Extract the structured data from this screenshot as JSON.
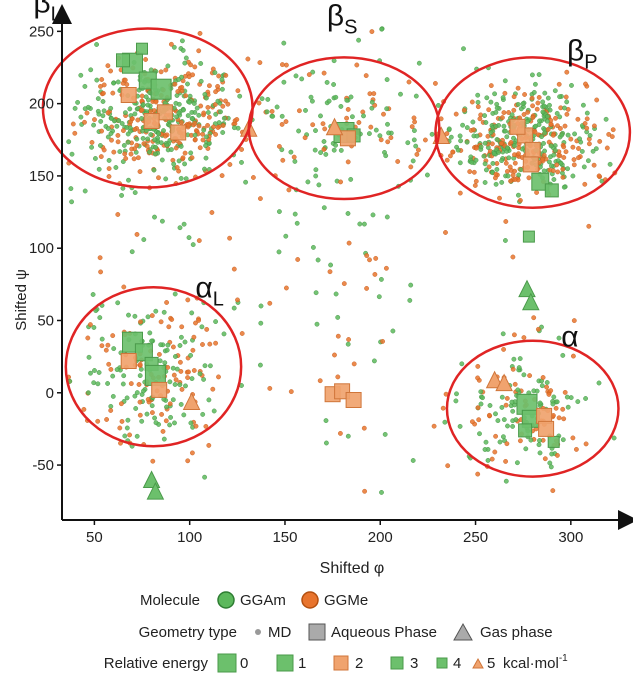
{
  "chart_data": {
    "type": "scatter",
    "xlabel": "Shifted φ",
    "ylabel": "Shifted ψ",
    "xlim": [
      33,
      330
    ],
    "ylim": [
      -88,
      262
    ],
    "xticks": [
      50,
      100,
      150,
      200,
      250,
      300
    ],
    "yticks": [
      -50,
      0,
      50,
      100,
      150,
      200,
      250
    ],
    "regions": [
      {
        "label": "β",
        "sub": "L",
        "cx": 78,
        "cy": 197,
        "rx": 55,
        "ry": 55
      },
      {
        "label": "β",
        "sub": "S",
        "cx": 181,
        "cy": 183,
        "rx": 50,
        "ry": 49
      },
      {
        "label": "β",
        "sub": "P",
        "cx": 280,
        "cy": 180,
        "rx": 51,
        "ry": 52
      },
      {
        "label": "α",
        "sub": "L",
        "cx": 81,
        "cy": 18,
        "rx": 46,
        "ry": 55
      },
      {
        "label": "α",
        "sub": "",
        "cx": 280,
        "cy": -11,
        "rx": 45,
        "ry": 47
      }
    ],
    "series": [
      {
        "name": "GGAm",
        "color": "#5cb85c"
      },
      {
        "name": "GGMe",
        "color": "#e8742d"
      }
    ],
    "aqueous_points": [
      {
        "molecule": "GGAm",
        "x": 70,
        "y": 228,
        "energy": 0
      },
      {
        "molecule": "GGAm",
        "x": 78,
        "y": 216,
        "energy": 1
      },
      {
        "molecule": "GGAm",
        "x": 85,
        "y": 210,
        "energy": 0
      },
      {
        "molecule": "GGAm",
        "x": 65,
        "y": 230,
        "energy": 3
      },
      {
        "molecule": "GGAm",
        "x": 75,
        "y": 238,
        "energy": 4
      },
      {
        "molecule": "GGMe",
        "x": 68,
        "y": 206,
        "energy": 2
      },
      {
        "molecule": "GGMe",
        "x": 87,
        "y": 194,
        "energy": 2
      },
      {
        "molecule": "GGMe",
        "x": 94,
        "y": 180,
        "energy": 2
      },
      {
        "molecule": "GGMe",
        "x": 80,
        "y": 188,
        "energy": 2
      },
      {
        "molecule": "GGAm",
        "x": 181,
        "y": 180,
        "energy": 0
      },
      {
        "molecule": "GGAm",
        "x": 186,
        "y": 178,
        "energy": 3
      },
      {
        "molecule": "GGMe",
        "x": 183,
        "y": 176,
        "energy": 2
      },
      {
        "molecule": "GGMe",
        "x": 276,
        "y": 178,
        "energy": 2
      },
      {
        "molecule": "GGMe",
        "x": 280,
        "y": 168,
        "energy": 2
      },
      {
        "molecule": "GGMe",
        "x": 272,
        "y": 184,
        "energy": 2
      },
      {
        "molecule": "GGMe",
        "x": 279,
        "y": 158,
        "energy": 2
      },
      {
        "molecule": "GGAm",
        "x": 284,
        "y": 146,
        "energy": 1
      },
      {
        "molecule": "GGAm",
        "x": 290,
        "y": 140,
        "energy": 3
      },
      {
        "molecule": "GGAm",
        "x": 278,
        "y": 108,
        "energy": 4
      },
      {
        "molecule": "GGAm",
        "x": 70,
        "y": 35,
        "energy": 0
      },
      {
        "molecule": "GGAm",
        "x": 76,
        "y": 28,
        "energy": 1
      },
      {
        "molecule": "GGAm",
        "x": 80,
        "y": 20,
        "energy": 3
      },
      {
        "molecule": "GGAm",
        "x": 82,
        "y": 12,
        "energy": 0
      },
      {
        "molecule": "GGMe",
        "x": 68,
        "y": 22,
        "energy": 2
      },
      {
        "molecule": "GGMe",
        "x": 84,
        "y": 2,
        "energy": 2
      },
      {
        "molecule": "GGMe",
        "x": 175,
        "y": -1,
        "energy": 2
      },
      {
        "molecule": "GGMe",
        "x": 180,
        "y": 1,
        "energy": 2
      },
      {
        "molecule": "GGMe",
        "x": 186,
        "y": -5,
        "energy": 2
      },
      {
        "molecule": "GGAm",
        "x": 277,
        "y": -8,
        "energy": 0
      },
      {
        "molecule": "GGAm",
        "x": 279,
        "y": -18,
        "energy": 1
      },
      {
        "molecule": "GGAm",
        "x": 276,
        "y": -26,
        "energy": 3
      },
      {
        "molecule": "GGAm",
        "x": 291,
        "y": -34,
        "energy": 4
      },
      {
        "molecule": "GGMe",
        "x": 286,
        "y": -16,
        "energy": 2
      },
      {
        "molecule": "GGMe",
        "x": 287,
        "y": -25,
        "energy": 2
      }
    ],
    "gas_points": [
      {
        "molecule": "GGMe",
        "x": 131,
        "y": 183
      },
      {
        "molecule": "GGMe",
        "x": 176,
        "y": 184
      },
      {
        "molecule": "GGMe",
        "x": 232,
        "y": 178
      },
      {
        "molecule": "GGMe",
        "x": 101,
        "y": -6
      },
      {
        "molecule": "GGMe",
        "x": 260,
        "y": 9
      },
      {
        "molecule": "GGMe",
        "x": 265,
        "y": 7
      },
      {
        "molecule": "GGAm",
        "x": 277,
        "y": 72
      },
      {
        "molecule": "GGAm",
        "x": 279,
        "y": 63
      },
      {
        "molecule": "GGAm",
        "x": 80,
        "y": -60
      },
      {
        "molecule": "GGAm",
        "x": 82,
        "y": -68
      }
    ],
    "md_clusters": [
      {
        "cx": 85,
        "cy": 190,
        "sx": 22,
        "sy": 20,
        "n": 520
      },
      {
        "cx": 275,
        "cy": 175,
        "sx": 20,
        "sy": 18,
        "n": 480
      },
      {
        "cx": 182,
        "cy": 182,
        "sx": 22,
        "sy": 24,
        "n": 110
      },
      {
        "cx": 80,
        "cy": 15,
        "sx": 18,
        "sy": 24,
        "n": 230
      },
      {
        "cx": 279,
        "cy": -12,
        "sx": 17,
        "sy": 21,
        "n": 170
      },
      {
        "cx": 180,
        "cy": 100,
        "sx": 75,
        "sy": 80,
        "n": 150
      }
    ],
    "legend": {
      "molecule_title": "Molecule",
      "molecule_items": [
        "GGAm",
        "GGMe"
      ],
      "geometry_title": "Geometry type",
      "geometry_items": [
        "MD",
        "Aqueous Phase",
        "Gas phase"
      ],
      "energy_title": "Relative energy",
      "energy_items": [
        "0",
        "1",
        "2",
        "3",
        "4",
        "5"
      ],
      "energy_unit_main": "kcal·mol",
      "energy_unit_sup": "-1"
    }
  }
}
